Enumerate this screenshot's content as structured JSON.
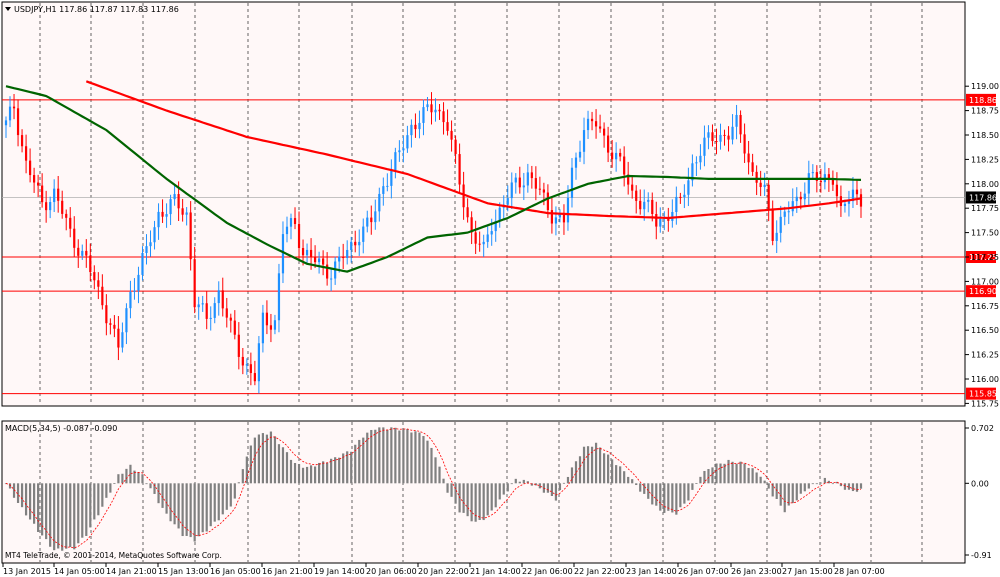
{
  "header": {
    "symbol_info": "USDJPY,H1  117.86 117.87 117.83 117.86"
  },
  "macd": {
    "label": "MACD(5,34,5) -0.087 -0.090",
    "axis_labels": [
      "0.702",
      "0.00",
      "-0.91"
    ]
  },
  "copyright": "MT4 TeleTrade, © 2001-2014, MetaQuotes Software Corp.",
  "colors": {
    "background": "#fff8f8",
    "up_candle": "#1e90ff",
    "down_candle": "#ff0000",
    "ma_slow": "#ff0000",
    "ma_fast": "#006400",
    "hline": "#ff0000",
    "macd_hist": "#808080",
    "macd_signal": "#ff0000"
  },
  "chart_data": {
    "type": "candlestick",
    "y_tick_labels": [
      "119.00",
      "118.75",
      "118.50",
      "118.25",
      "118.00",
      "117.75",
      "117.50",
      "117.25",
      "117.00",
      "116.75",
      "116.50",
      "116.25",
      "116.00",
      "115.75"
    ],
    "ylim": [
      115.7,
      119.05
    ],
    "x_tick_labels": [
      "13 Jan 2015",
      "14 Jan 05:00",
      "14 Jan 21:00",
      "15 Jan 13:00",
      "16 Jan 05:00",
      "16 Jan 21:00",
      "19 Jan 14:00",
      "20 Jan 06:00",
      "20 Jan 22:00",
      "21 Jan 14:00",
      "22 Jan 06:00",
      "22 Jan 22:00",
      "23 Jan 14:00",
      "26 Jan 07:00",
      "26 Jan 23:00",
      "27 Jan 15:00",
      "28 Jan 07:00"
    ],
    "price_levels": [
      {
        "value": 118.86,
        "label": "118.86"
      },
      {
        "value": 117.25,
        "label": "117.25"
      },
      {
        "value": 116.9,
        "label": "116.90"
      },
      {
        "value": 115.85,
        "label": "115.85"
      }
    ],
    "current_price": {
      "value": 117.86,
      "label": "117.86"
    },
    "close_path": [
      [
        0,
        118.6
      ],
      [
        2,
        118.8
      ],
      [
        5,
        118.2
      ],
      [
        9,
        117.8
      ],
      [
        12,
        117.9
      ],
      [
        16,
        117.5
      ],
      [
        20,
        117.2
      ],
      [
        24,
        116.8
      ],
      [
        28,
        116.3
      ],
      [
        31,
        116.9
      ],
      [
        35,
        117.3
      ],
      [
        38,
        117.7
      ],
      [
        42,
        117.8
      ],
      [
        45,
        117.7
      ],
      [
        47,
        116.8
      ],
      [
        50,
        116.6
      ],
      [
        53,
        116.9
      ],
      [
        56,
        116.5
      ],
      [
        59,
        116.2
      ],
      [
        62,
        116.0
      ],
      [
        64,
        116.6
      ],
      [
        67,
        116.6
      ],
      [
        69,
        117.5
      ],
      [
        72,
        117.6
      ],
      [
        74,
        117.3
      ],
      [
        77,
        117.2
      ],
      [
        81,
        117.1
      ],
      [
        85,
        117.3
      ],
      [
        88,
        117.5
      ],
      [
        91,
        117.6
      ],
      [
        94,
        118.0
      ],
      [
        98,
        118.3
      ],
      [
        101,
        118.6
      ],
      [
        104,
        118.7
      ],
      [
        107,
        118.8
      ],
      [
        110,
        118.6
      ],
      [
        113,
        118.0
      ],
      [
        116,
        117.5
      ],
      [
        119,
        117.3
      ],
      [
        121,
        117.6
      ],
      [
        124,
        117.8
      ],
      [
        127,
        118.0
      ],
      [
        130,
        118.1
      ],
      [
        133,
        117.9
      ],
      [
        136,
        117.7
      ],
      [
        139,
        117.6
      ],
      [
        141,
        118.1
      ],
      [
        144,
        118.6
      ],
      [
        147,
        118.6
      ],
      [
        150,
        118.4
      ],
      [
        153,
        118.2
      ],
      [
        156,
        117.9
      ],
      [
        159,
        117.8
      ],
      [
        162,
        117.6
      ],
      [
        165,
        117.7
      ],
      [
        168,
        117.8
      ],
      [
        171,
        118.2
      ],
      [
        174,
        118.4
      ],
      [
        177,
        118.5
      ],
      [
        180,
        118.5
      ],
      [
        182,
        118.6
      ],
      [
        184,
        118.4
      ],
      [
        186,
        118.1
      ],
      [
        189,
        117.9
      ],
      [
        191,
        117.5
      ],
      [
        194,
        117.7
      ],
      [
        197,
        117.8
      ],
      [
        200,
        118.1
      ],
      [
        203,
        118.0
      ],
      [
        206,
        118.1
      ],
      [
        208,
        117.7
      ],
      [
        211,
        117.9
      ],
      [
        213,
        117.86
      ]
    ],
    "ma_slow_path": [
      [
        20,
        119.05
      ],
      [
        40,
        118.75
      ],
      [
        60,
        118.48
      ],
      [
        80,
        118.3
      ],
      [
        100,
        118.1
      ],
      [
        110,
        117.95
      ],
      [
        120,
        117.8
      ],
      [
        135,
        117.7
      ],
      [
        150,
        117.67
      ],
      [
        165,
        117.65
      ],
      [
        180,
        117.7
      ],
      [
        195,
        117.75
      ],
      [
        205,
        117.8
      ],
      [
        213,
        117.85
      ]
    ],
    "ma_fast_path": [
      [
        0,
        119.0
      ],
      [
        10,
        118.9
      ],
      [
        25,
        118.55
      ],
      [
        40,
        118.05
      ],
      [
        55,
        117.6
      ],
      [
        65,
        117.38
      ],
      [
        75,
        117.18
      ],
      [
        85,
        117.1
      ],
      [
        95,
        117.25
      ],
      [
        105,
        117.45
      ],
      [
        115,
        117.5
      ],
      [
        125,
        117.65
      ],
      [
        135,
        117.85
      ],
      [
        145,
        118.0
      ],
      [
        155,
        118.08
      ],
      [
        165,
        118.07
      ],
      [
        175,
        118.05
      ],
      [
        185,
        118.05
      ],
      [
        195,
        118.05
      ],
      [
        205,
        118.05
      ],
      [
        213,
        118.04
      ]
    ],
    "macd": {
      "ylim": [
        -0.91,
        0.702
      ],
      "hist_path": [
        [
          0,
          0.0
        ],
        [
          3,
          -0.25
        ],
        [
          8,
          -0.6
        ],
        [
          12,
          -0.85
        ],
        [
          17,
          -0.82
        ],
        [
          20,
          -0.65
        ],
        [
          24,
          -0.3
        ],
        [
          28,
          0.1
        ],
        [
          31,
          0.22
        ],
        [
          34,
          0.1
        ],
        [
          37,
          -0.15
        ],
        [
          40,
          -0.4
        ],
        [
          44,
          -0.65
        ],
        [
          47,
          -0.72
        ],
        [
          51,
          -0.55
        ],
        [
          55,
          -0.35
        ],
        [
          57,
          -0.2
        ],
        [
          59,
          0.2
        ],
        [
          62,
          0.6
        ],
        [
          66,
          0.65
        ],
        [
          69,
          0.45
        ],
        [
          72,
          0.25
        ],
        [
          75,
          0.2
        ],
        [
          78,
          0.25
        ],
        [
          82,
          0.32
        ],
        [
          86,
          0.42
        ],
        [
          89,
          0.6
        ],
        [
          92,
          0.7
        ],
        [
          96,
          0.7
        ],
        [
          100,
          0.68
        ],
        [
          104,
          0.62
        ],
        [
          107,
          0.35
        ],
        [
          110,
          -0.1
        ],
        [
          113,
          -0.35
        ],
        [
          117,
          -0.5
        ],
        [
          120,
          -0.42
        ],
        [
          124,
          -0.15
        ],
        [
          127,
          0.05
        ],
        [
          130,
          0.02
        ],
        [
          134,
          -0.1
        ],
        [
          137,
          -0.2
        ],
        [
          140,
          0.1
        ],
        [
          144,
          0.45
        ],
        [
          147,
          0.5
        ],
        [
          151,
          0.3
        ],
        [
          155,
          0.1
        ],
        [
          159,
          -0.15
        ],
        [
          163,
          -0.35
        ],
        [
          167,
          -0.38
        ],
        [
          170,
          -0.2
        ],
        [
          173,
          0.1
        ],
        [
          176,
          0.22
        ],
        [
          180,
          0.28
        ],
        [
          184,
          0.25
        ],
        [
          188,
          0.1
        ],
        [
          191,
          -0.15
        ],
        [
          194,
          -0.35
        ],
        [
          197,
          -0.2
        ],
        [
          200,
          -0.05
        ],
        [
          204,
          0.05
        ],
        [
          207,
          0.0
        ],
        [
          210,
          -0.1
        ],
        [
          213,
          -0.087
        ]
      ]
    }
  }
}
